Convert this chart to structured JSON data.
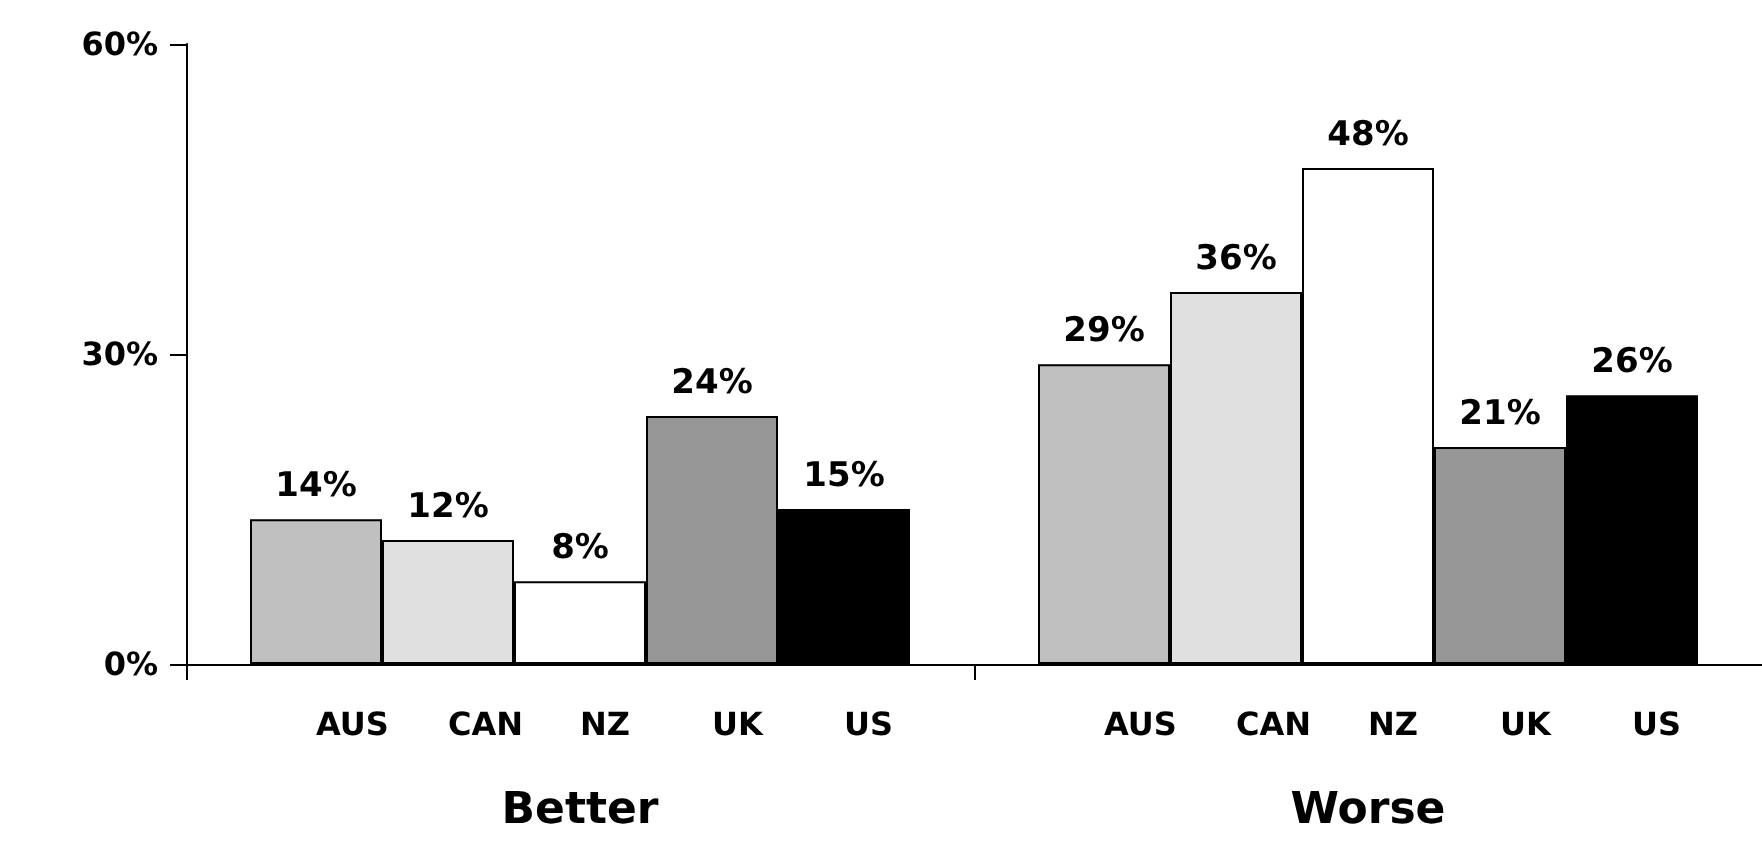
{
  "chart_data": {
    "type": "bar",
    "categories": [
      "Better",
      "Worse"
    ],
    "series": [
      {
        "name": "AUS",
        "color": "#c0c0c0",
        "values": [
          14,
          29
        ],
        "value_labels": [
          "14%",
          "29%"
        ]
      },
      {
        "name": "CAN",
        "color": "#e0e0e0",
        "values": [
          12,
          36
        ],
        "value_labels": [
          "12%",
          "36%"
        ]
      },
      {
        "name": "NZ",
        "color": "#ffffff",
        "values": [
          8,
          48
        ],
        "value_labels": [
          "8%",
          "48%"
        ]
      },
      {
        "name": "UK",
        "color": "#969696",
        "values": [
          24,
          21
        ],
        "value_labels": [
          "24%",
          "21%"
        ]
      },
      {
        "name": "US",
        "color": "#000000",
        "values": [
          15,
          26
        ],
        "value_labels": [
          "15%",
          "26%"
        ]
      }
    ],
    "ylim": [
      0,
      60
    ],
    "yticks": [
      {
        "value": 0,
        "label": "0%"
      },
      {
        "value": 30,
        "label": "30%"
      },
      {
        "value": 60,
        "label": "60%"
      }
    ],
    "grid": false,
    "legend": false
  }
}
